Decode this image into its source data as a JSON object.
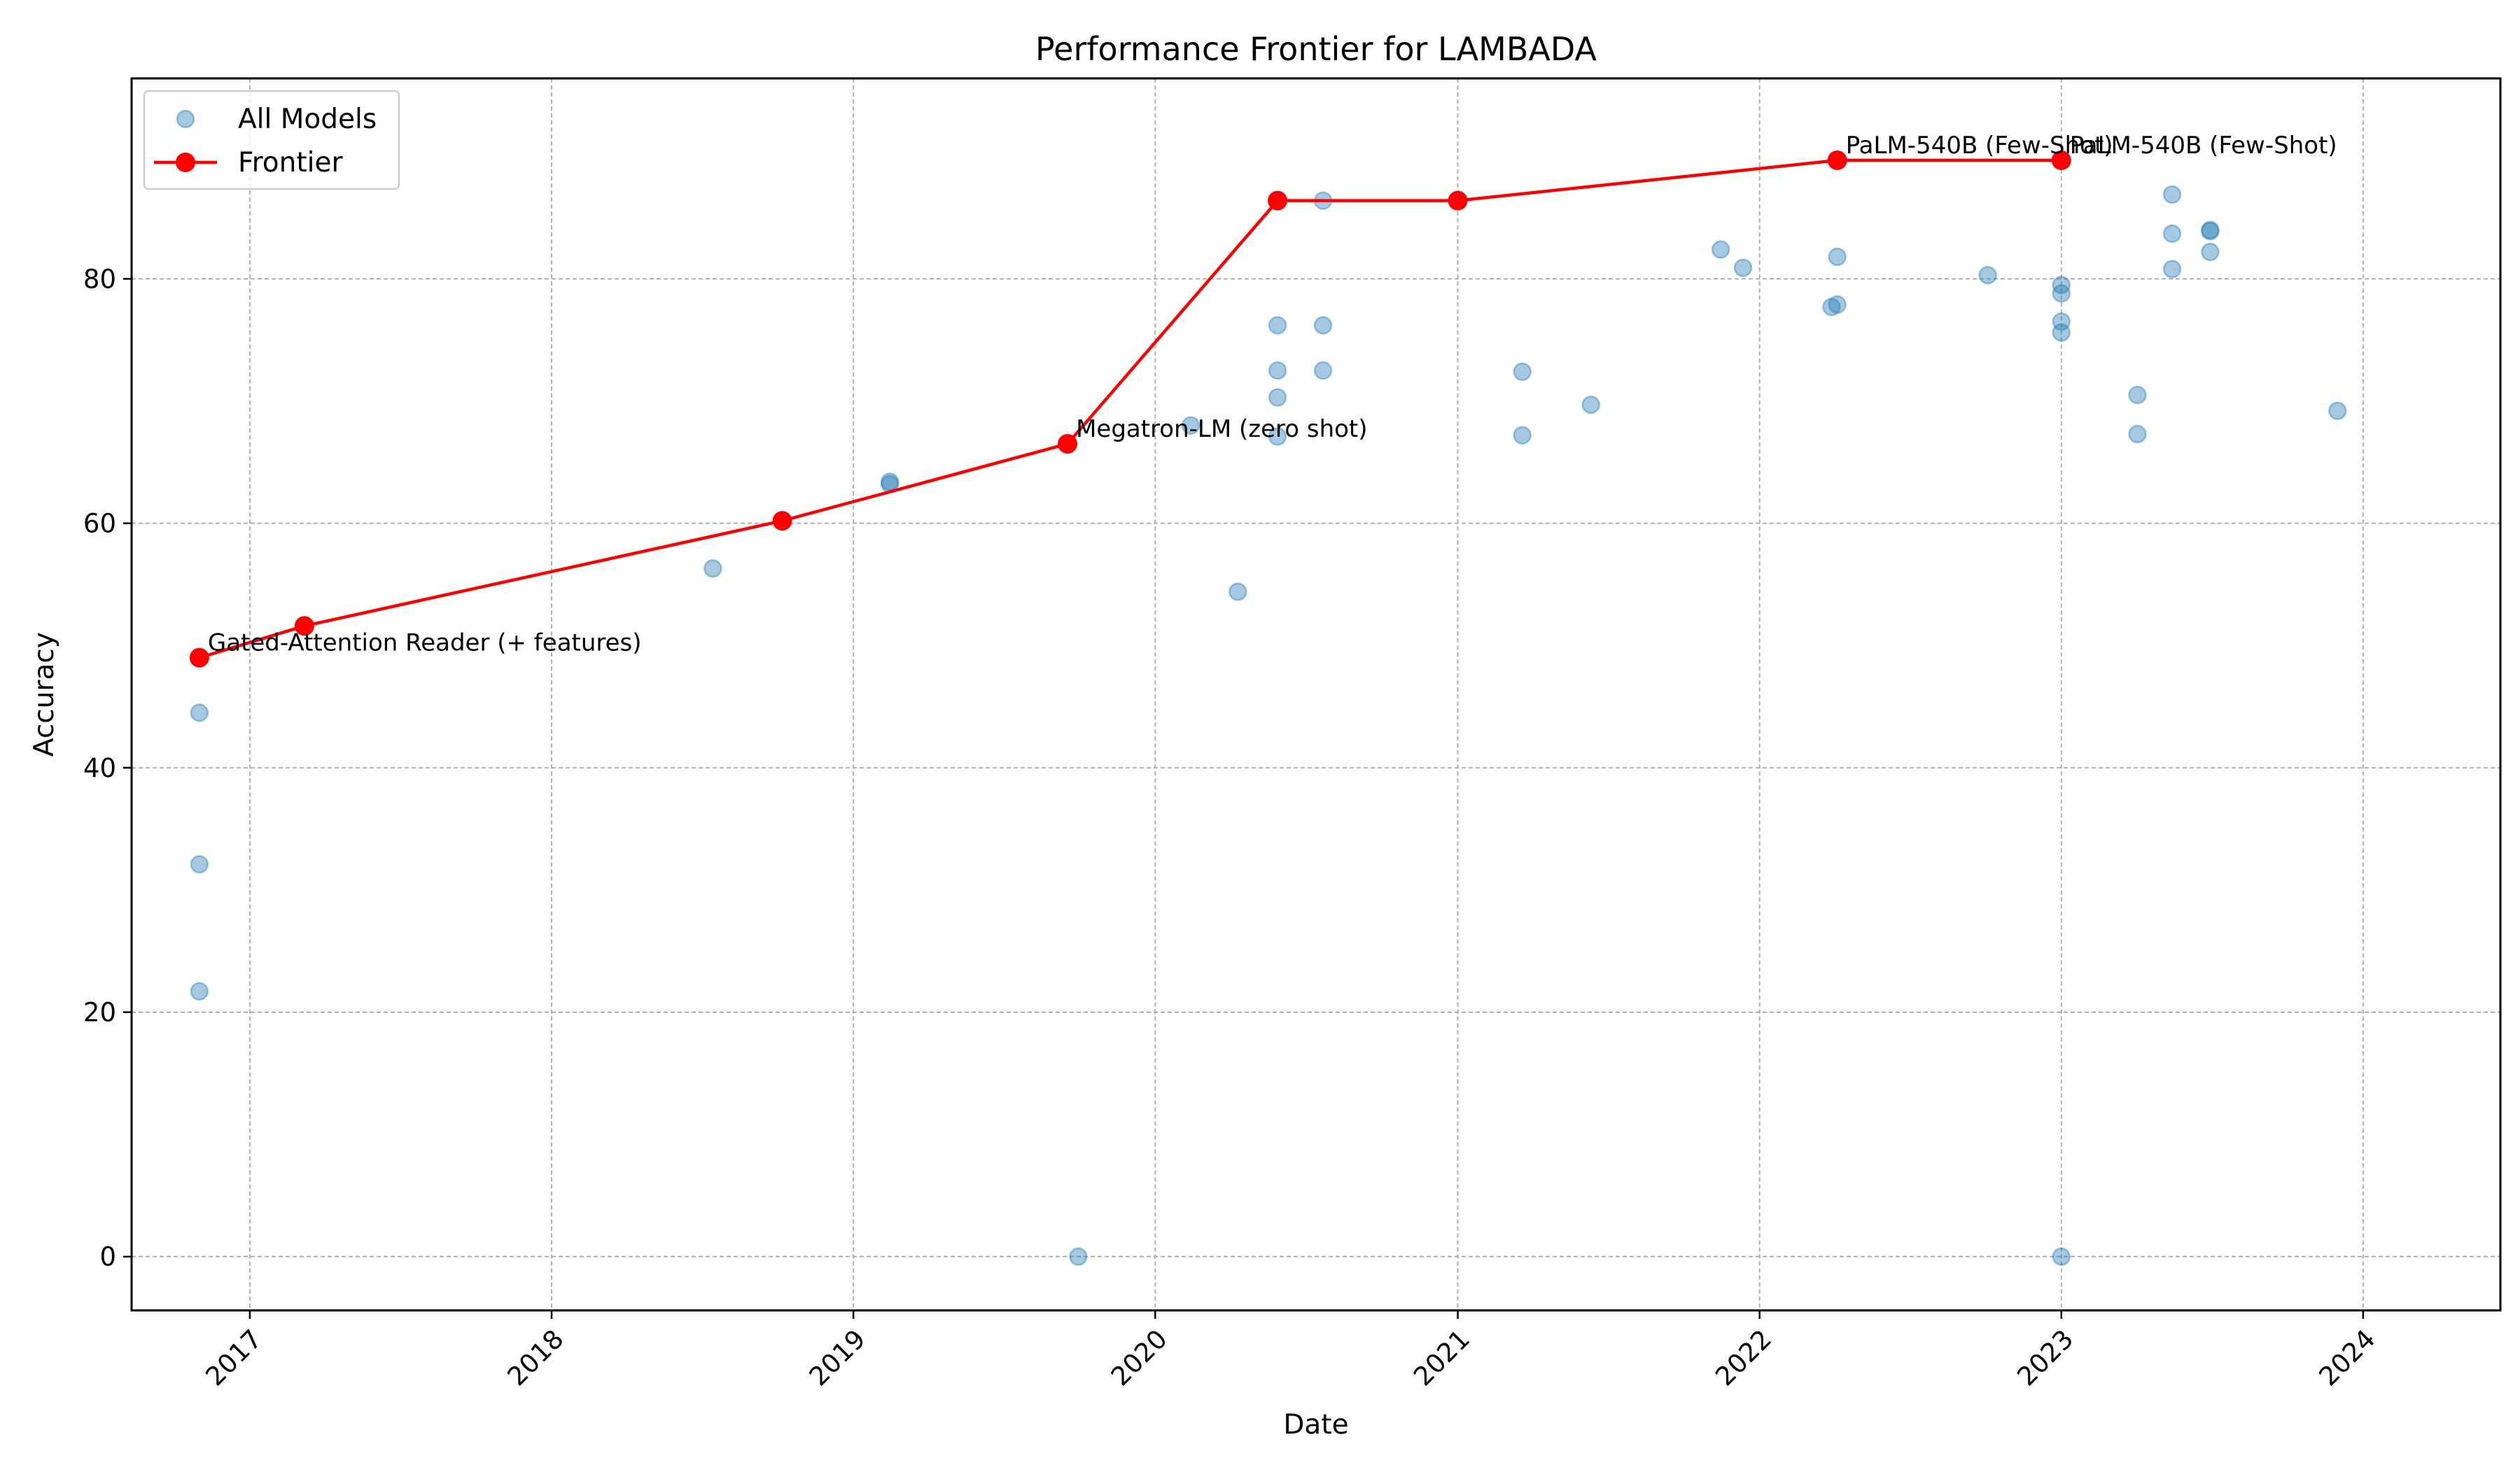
{
  "chart_data": {
    "type": "scatter",
    "title": "Performance Frontier for LAMBADA",
    "xlabel": "Date",
    "ylabel": "Accuracy",
    "x_axis_type": "date",
    "xlim": [
      "2016-08-11",
      "2024-06-15"
    ],
    "ylim": [
      -4.4,
      96.4
    ],
    "x_ticks": [
      "2017-01-01",
      "2018-01-01",
      "2019-01-01",
      "2020-01-01",
      "2021-01-01",
      "2022-01-01",
      "2023-01-01",
      "2024-01-01"
    ],
    "x_tick_labels": [
      "2017",
      "2018",
      "2019",
      "2020",
      "2021",
      "2022",
      "2023",
      "2024"
    ],
    "y_ticks": [
      0,
      20,
      40,
      60,
      80
    ],
    "y_tick_labels": [
      "0",
      "20",
      "40",
      "60",
      "80"
    ],
    "grid": true,
    "legend_position": "top-left",
    "legend": [
      "All Models",
      "Frontier"
    ],
    "colors": {
      "scatter": "#1f77b4",
      "frontier": "#ff0000"
    },
    "series": [
      {
        "name": "All Models",
        "type": "scatter",
        "points": [
          {
            "x": "2016-11-01",
            "y": 44.5
          },
          {
            "x": "2016-11-01",
            "y": 32.1
          },
          {
            "x": "2016-11-01",
            "y": 21.7
          },
          {
            "x": "2018-07-15",
            "y": 56.3
          },
          {
            "x": "2019-02-14",
            "y": 63.4
          },
          {
            "x": "2019-02-14",
            "y": 63.2
          },
          {
            "x": "2019-09-30",
            "y": 0.0
          },
          {
            "x": "2020-02-13",
            "y": 68.0
          },
          {
            "x": "2020-04-10",
            "y": 54.4
          },
          {
            "x": "2020-05-28",
            "y": 76.2
          },
          {
            "x": "2020-05-28",
            "y": 72.5
          },
          {
            "x": "2020-05-28",
            "y": 70.3
          },
          {
            "x": "2020-05-28",
            "y": 67.1
          },
          {
            "x": "2020-07-22",
            "y": 86.4
          },
          {
            "x": "2020-07-22",
            "y": 76.2
          },
          {
            "x": "2020-07-22",
            "y": 72.5
          },
          {
            "x": "2021-03-20",
            "y": 72.4
          },
          {
            "x": "2021-03-20",
            "y": 67.2
          },
          {
            "x": "2021-06-11",
            "y": 69.7
          },
          {
            "x": "2021-11-15",
            "y": 82.4
          },
          {
            "x": "2021-12-12",
            "y": 80.9
          },
          {
            "x": "2022-03-29",
            "y": 77.7
          },
          {
            "x": "2022-04-05",
            "y": 77.9
          },
          {
            "x": "2022-04-05",
            "y": 81.8
          },
          {
            "x": "2022-10-04",
            "y": 80.3
          },
          {
            "x": "2023-01-01",
            "y": 79.5
          },
          {
            "x": "2023-01-01",
            "y": 78.8
          },
          {
            "x": "2023-01-01",
            "y": 76.5
          },
          {
            "x": "2023-01-01",
            "y": 75.6
          },
          {
            "x": "2023-01-01",
            "y": 0.0
          },
          {
            "x": "2023-04-03",
            "y": 70.5
          },
          {
            "x": "2023-04-03",
            "y": 67.3
          },
          {
            "x": "2023-05-15",
            "y": 86.9
          },
          {
            "x": "2023-05-15",
            "y": 83.7
          },
          {
            "x": "2023-05-15",
            "y": 80.8
          },
          {
            "x": "2023-06-30",
            "y": 83.9
          },
          {
            "x": "2023-06-30",
            "y": 84.0
          },
          {
            "x": "2023-06-30",
            "y": 82.2
          },
          {
            "x": "2023-12-01",
            "y": 69.2
          }
        ]
      },
      {
        "name": "Frontier",
        "type": "line",
        "points": [
          {
            "x": "2016-11-01",
            "y": 49.0
          },
          {
            "x": "2017-03-08",
            "y": 51.6
          },
          {
            "x": "2018-10-07",
            "y": 60.2
          },
          {
            "x": "2019-09-17",
            "y": 66.5
          },
          {
            "x": "2020-05-28",
            "y": 86.4
          },
          {
            "x": "2021-01-01",
            "y": 86.4
          },
          {
            "x": "2022-04-05",
            "y": 89.7
          },
          {
            "x": "2023-01-01",
            "y": 89.7
          }
        ]
      }
    ],
    "annotations": [
      {
        "text": "Gated-Attention Reader (+ features)",
        "x": "2016-11-01",
        "y": 49.0
      },
      {
        "text": "Megatron-LM (zero shot)",
        "x": "2019-09-17",
        "y": 66.5
      },
      {
        "text": "PaLM-540B (Few-Shot)",
        "x": "2022-04-05",
        "y": 89.7
      },
      {
        "text": "PaLM-540B (Few-Shot)",
        "x": "2023-01-01",
        "y": 89.7
      }
    ]
  }
}
